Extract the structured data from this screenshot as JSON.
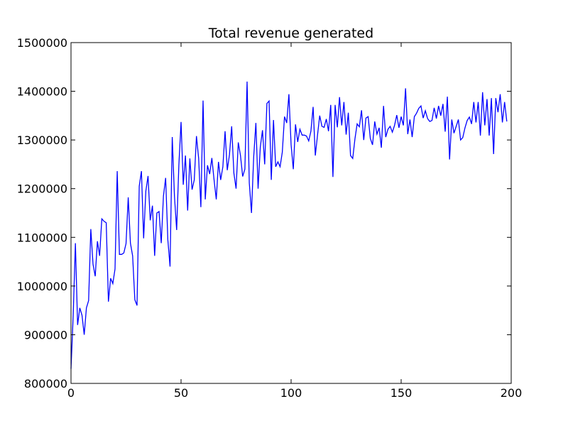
{
  "chart_data": {
    "type": "line",
    "title": "Total revenue generated",
    "xlabel": "",
    "ylabel": "",
    "xlim": [
      0,
      200
    ],
    "ylim": [
      800000,
      1500000
    ],
    "x_ticks": [
      0,
      50,
      100,
      150,
      200
    ],
    "y_ticks": [
      800000,
      900000,
      1000000,
      1100000,
      1200000,
      1300000,
      1400000,
      1500000
    ],
    "x_tick_labels": [
      "0",
      "50",
      "100",
      "150",
      "200"
    ],
    "y_tick_labels": [
      "800000",
      "900000",
      "1000000",
      "1100000",
      "1200000",
      "1300000",
      "1400000",
      "1500000"
    ],
    "grid": false,
    "legend": "none",
    "line_color": "#0000ff",
    "series": [
      {
        "x": [
          0,
          1,
          2,
          3,
          4,
          5,
          6,
          7,
          8,
          9,
          10,
          11,
          12,
          13,
          14,
          15,
          16,
          17,
          18,
          19,
          20,
          21,
          22,
          23,
          24,
          25,
          26,
          27,
          28,
          29,
          30,
          31,
          32,
          33,
          34,
          35,
          36,
          37,
          38,
          39,
          40,
          41,
          42,
          43,
          44,
          45,
          46,
          47,
          48,
          49,
          50,
          51,
          52,
          53,
          54,
          55,
          56,
          57,
          58,
          59,
          60,
          61,
          62,
          63,
          64,
          65,
          66,
          67,
          68,
          69,
          70,
          71,
          72,
          73,
          74,
          75,
          76,
          77,
          78,
          79,
          80,
          81,
          82,
          83,
          84,
          85,
          86,
          87,
          88,
          89,
          90,
          91,
          92,
          93,
          94,
          95,
          96,
          97,
          98,
          99,
          100,
          101,
          102,
          103,
          104,
          105,
          106,
          107,
          108,
          109,
          110,
          111,
          112,
          113,
          114,
          115,
          116,
          117,
          118,
          119,
          120,
          121,
          122,
          123,
          124,
          125,
          126,
          127,
          128,
          129,
          130,
          131,
          132,
          133,
          134,
          135,
          136,
          137,
          138,
          139,
          140,
          141,
          142,
          143,
          144,
          145,
          146,
          147,
          148,
          149,
          150,
          151,
          152,
          153,
          154,
          155,
          156,
          157,
          158,
          159,
          160,
          161,
          162,
          163,
          164,
          165,
          166,
          167,
          168,
          169,
          170,
          171,
          172,
          173,
          174,
          175,
          176,
          177,
          178,
          179,
          180,
          181,
          182,
          183,
          184,
          185,
          186,
          187,
          188,
          189,
          190,
          191,
          192,
          193,
          194,
          195,
          196,
          197,
          198
        ],
        "values": [
          830000,
          940000,
          1088000,
          920000,
          955000,
          940000,
          900000,
          955000,
          970000,
          1117000,
          1045000,
          1020000,
          1092000,
          1062000,
          1138000,
          1133000,
          1130000,
          968000,
          1016000,
          1005000,
          1035000,
          1236000,
          1065000,
          1065000,
          1068000,
          1087000,
          1182000,
          1088000,
          1062000,
          972000,
          960000,
          1205000,
          1236000,
          1098000,
          1195000,
          1226000,
          1135000,
          1165000,
          1062000,
          1150000,
          1153000,
          1088000,
          1185000,
          1222000,
          1095000,
          1040000,
          1306000,
          1185000,
          1115000,
          1248000,
          1337000,
          1208000,
          1268000,
          1155000,
          1262000,
          1198000,
          1218000,
          1308000,
          1262000,
          1162000,
          1381000,
          1178000,
          1248000,
          1230000,
          1263000,
          1218000,
          1178000,
          1255000,
          1218000,
          1245000,
          1318000,
          1238000,
          1270000,
          1328000,
          1232000,
          1200000,
          1295000,
          1268000,
          1225000,
          1240000,
          1420000,
          1212000,
          1150000,
          1265000,
          1335000,
          1200000,
          1285000,
          1320000,
          1250000,
          1375000,
          1380000,
          1218000,
          1341000,
          1245000,
          1255000,
          1245000,
          1275000,
          1348000,
          1335000,
          1394000,
          1290000,
          1240000,
          1332000,
          1296000,
          1322000,
          1310000,
          1310000,
          1308000,
          1298000,
          1318000,
          1368000,
          1268000,
          1310000,
          1350000,
          1328000,
          1326000,
          1343000,
          1318000,
          1372000,
          1224000,
          1372000,
          1326000,
          1388000,
          1330000,
          1378000,
          1311000,
          1356000,
          1268000,
          1262000,
          1302000,
          1333000,
          1327000,
          1361000,
          1300000,
          1345000,
          1348000,
          1303000,
          1290000,
          1338000,
          1312000,
          1325000,
          1284000,
          1370000,
          1306000,
          1322000,
          1328000,
          1316000,
          1330000,
          1351000,
          1325000,
          1348000,
          1330000,
          1406000,
          1312000,
          1342000,
          1306000,
          1348000,
          1355000,
          1365000,
          1370000,
          1345000,
          1360000,
          1344000,
          1338000,
          1340000,
          1366000,
          1344000,
          1370000,
          1350000,
          1374000,
          1317000,
          1389000,
          1260000,
          1342000,
          1314000,
          1328000,
          1342000,
          1300000,
          1305000,
          1325000,
          1340000,
          1347000,
          1333000,
          1378000,
          1336000,
          1378000,
          1309000,
          1398000,
          1330000,
          1384000,
          1309000,
          1386000,
          1271000,
          1386000,
          1357000,
          1394000,
          1336000,
          1378000,
          1338000
        ]
      }
    ]
  }
}
